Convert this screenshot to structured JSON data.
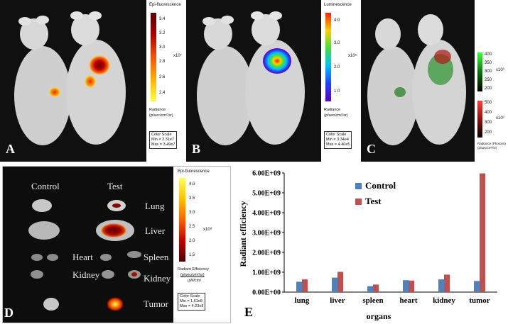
{
  "panels": {
    "A": {
      "letter": "A",
      "scale_title": "Epi-fluorescence",
      "ticks": [
        "3.4",
        "3.2",
        "3.0",
        "2.8",
        "2.6",
        "2.4"
      ],
      "exp": "x10⁷",
      "unit_label": "Radiance",
      "unit": "(p/sec/cm²/sr)",
      "cs_title": "Color Scale",
      "cs_min": "Min = 2.31e7",
      "cs_max": "Max = 3.49e7"
    },
    "B": {
      "letter": "B",
      "scale_title": "Luminescence",
      "ticks": [
        "4.0",
        "3.0",
        "2.0",
        "1.0"
      ],
      "exp": "x10⁵",
      "unit_label": "Radiance",
      "unit": "(p/sec/cm²/sr)",
      "cs_title": "Color Scale",
      "cs_min": "Min = 3.34e4",
      "cs_max": "Max = 4.40e5"
    },
    "C": {
      "letter": "C",
      "green_ticks": [
        "400",
        "350",
        "300",
        "250",
        "200"
      ],
      "green_exp": "x10³",
      "red_ticks": [
        "500",
        "400",
        "300",
        "200"
      ],
      "red_exp": "x10³",
      "unit": "Radiance (Photons) (p/sec/cm²/sr)"
    },
    "D": {
      "letter": "D",
      "control": "Control",
      "test": "Test",
      "organs": [
        "Lung",
        "Liver",
        "Heart",
        "Spleen",
        "Kidney",
        "Kidney",
        "Tumor"
      ],
      "scale_title": "Epi-fluorescence",
      "ticks": [
        "4.0",
        "3.5",
        "3.0",
        "2.5",
        "2.0",
        "1.5"
      ],
      "exp": "x10⁸",
      "unit_label": "Radiant Efficiency",
      "unit_num": "(p/sec/cm²/sr)",
      "unit_den": "μW/cm²",
      "cs_title": "Color Scale",
      "cs_min": "Min = 1.61e8",
      "cs_max": "Max = 4.23e8"
    },
    "E": {
      "letter": "E"
    }
  },
  "colors": {
    "control": "#4f81bd",
    "test": "#c0504d"
  },
  "chart_data": {
    "type": "bar",
    "categories": [
      "lung",
      "liver",
      "spleen",
      "heart",
      "kidney",
      "tumor"
    ],
    "series": [
      {
        "name": "Control",
        "values": [
          520000000,
          730000000,
          300000000,
          600000000,
          640000000,
          560000000
        ]
      },
      {
        "name": "Test",
        "values": [
          640000000,
          1020000000,
          380000000,
          580000000,
          880000000,
          5980000000
        ]
      }
    ],
    "ylim": [
      0,
      6000000000
    ],
    "yticks": [
      "0.00E+00",
      "1.00E+09",
      "2.00E+09",
      "3.00E+09",
      "4.00E+09",
      "5.00E+09",
      "6.00E+09"
    ],
    "xlabel": "organs",
    "ylabel": "Radiant efficiency",
    "legend_position": "top-center"
  }
}
